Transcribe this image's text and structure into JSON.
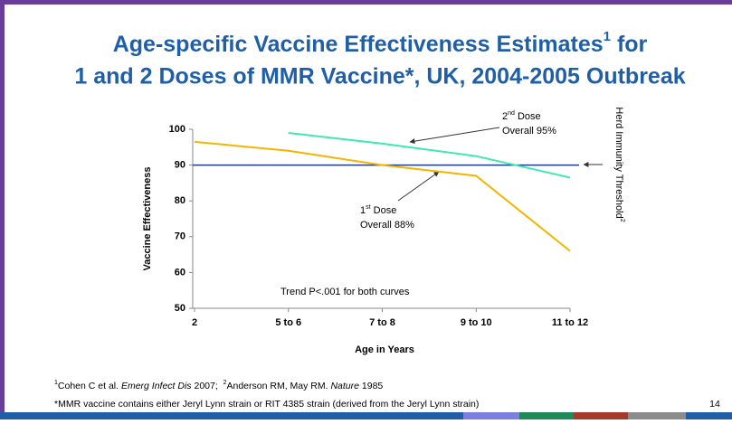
{
  "chart_data": {
    "type": "line",
    "title": {
      "line1": "Age-specific Vaccine Effectiveness Estimates",
      "line1_sup": "1",
      "line1_end": " for",
      "line2": "1 and 2 Doses of MMR Vaccine*, UK, 2004-2005 Outbreak"
    },
    "x_label": "Age in Years",
    "y_label": "Vaccine Effectiveness",
    "categories": [
      "2",
      "5 to 6",
      "7 to 8",
      "9 to 10",
      "11 to 12"
    ],
    "series": [
      {
        "name": "1st Dose",
        "color": "#f5b400",
        "values": [
          96.5,
          94,
          90,
          87,
          66
        ]
      },
      {
        "name": "2nd Dose",
        "color": "#3ee8b0",
        "values": [
          null,
          99,
          96,
          92.5,
          86.5
        ]
      }
    ],
    "ylim": [
      50,
      100
    ],
    "yticks": [
      50,
      60,
      70,
      80,
      90,
      100
    ],
    "threshold": {
      "value": 90,
      "color": "#1f3c88",
      "label": "Herd Immunity Threshold",
      "label_sup": "2"
    },
    "annotations": {
      "dose1": {
        "num": "1",
        "sup": "st",
        "rest": " Dose",
        "overall": "Overall 88%"
      },
      "dose2": {
        "num": "2",
        "sup": "nd",
        "rest": " Dose",
        "overall": "Overall 95%"
      },
      "trend": "Trend P<.001 for both curves"
    },
    "footnotes": {
      "f1": {
        "sup1": "1",
        "a": "Cohen C et al. ",
        "a_italic": "Emerg Infect Dis",
        "b": " 2007;  ",
        "sup2": "2",
        "c": "Anderson RM, May RM. ",
        "c_italic": "Nature",
        "d": " 1985"
      },
      "f2": "*MMR vaccine contains either Jeryl Lynn strain or RIT 4385 strain (derived from the Jeryl Lynn strain)"
    },
    "page_number": "14"
  }
}
